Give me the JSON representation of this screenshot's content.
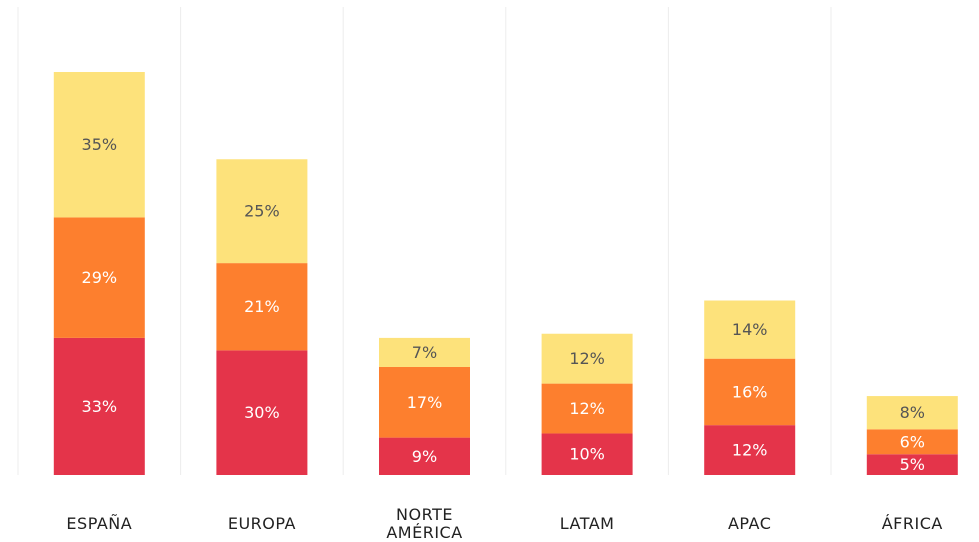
{
  "chart_data": {
    "type": "stacked_bar",
    "categories": [
      "ESPAÑA",
      "EUROPA",
      "NORTE AMÉRICA",
      "LATAM",
      "APAC",
      "ÁFRICA"
    ],
    "series": [
      {
        "color": "#e4344a",
        "label_color": "#ffffff",
        "values": [
          33,
          30,
          9,
          10,
          12,
          5
        ],
        "value_labels": [
          "33%",
          "30%",
          "9%",
          "10%",
          "12%",
          "5%"
        ]
      },
      {
        "color": "#fd7f2e",
        "label_color": "#ffffff",
        "values": [
          29,
          21,
          17,
          12,
          16,
          6
        ],
        "value_labels": [
          "29%",
          "21%",
          "17%",
          "12%",
          "16%",
          "6%"
        ]
      },
      {
        "color": "#fde27b",
        "label_color": "#555555",
        "values": [
          35,
          25,
          7,
          12,
          14,
          8
        ],
        "value_labels": [
          "35%",
          "25%",
          "7%",
          "12%",
          "14%",
          "8%"
        ]
      }
    ]
  }
}
